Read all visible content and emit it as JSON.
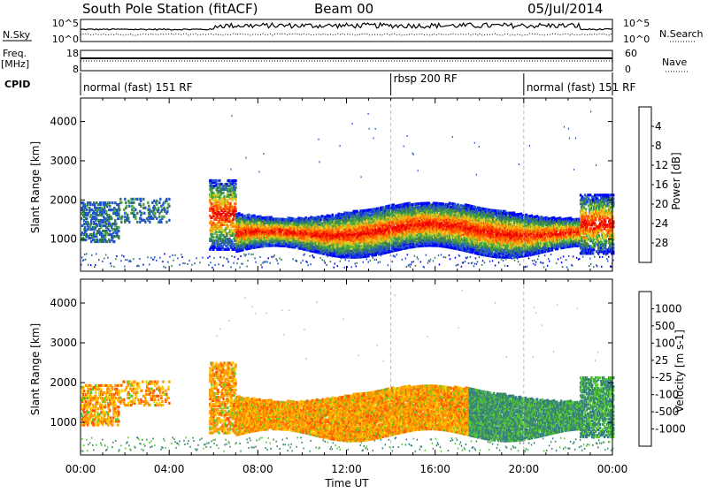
{
  "header": {
    "station": "South Pole Station (fitACF)",
    "beam": "Beam 00",
    "date": "05/Jul/2014"
  },
  "mini_panels": {
    "nsky": {
      "left_label": "N.Sky",
      "right_label": "N.Search",
      "left_ticks": [
        "10^5",
        "10^0"
      ],
      "right_ticks": [
        "10^5",
        "10^0"
      ]
    },
    "freq": {
      "left_label_line1": "Freq.",
      "left_label_line2": "[MHz]",
      "left_ticks": [
        "18",
        "8"
      ],
      "right_label": "Nave",
      "right_ticks": [
        "60",
        "0"
      ]
    },
    "cpid": {
      "label": "CPID",
      "segments": [
        {
          "label": "normal (fast) 151 RF",
          "start_hour": 0
        },
        {
          "label": "rbsp 200 RF",
          "start_hour": 14.0
        },
        {
          "label": "normal (fast) 151 RF",
          "start_hour": 20.0
        }
      ]
    }
  },
  "chart_data": [
    {
      "type": "heatmap",
      "name": "power",
      "ylabel": "Slant Range [km]",
      "ylim": [
        180,
        4600
      ],
      "yticks": [
        1000,
        2000,
        3000,
        4000
      ],
      "xlim": [
        0,
        24
      ],
      "colorbar": {
        "label": "Power [dB]",
        "ticks": [
          "4",
          "8",
          "12",
          "16",
          "20",
          "24",
          "28"
        ],
        "colors": [
          "#0000ff",
          "#2255cc",
          "#3a7a5a",
          "#44a844",
          "#ddcc22",
          "#ff8800",
          "#ff4400",
          "#ee0000"
        ]
      }
    },
    {
      "type": "heatmap",
      "name": "velocity",
      "ylabel": "Slant Range [km]",
      "ylim": [
        180,
        4600
      ],
      "yticks": [
        1000,
        2000,
        3000,
        4000
      ],
      "xlim": [
        0,
        24
      ],
      "xticks": [
        "00:00",
        "04:00",
        "08:00",
        "12:00",
        "16:00",
        "20:00",
        "00:00"
      ],
      "xlabel": "Time UT",
      "colorbar": {
        "label": "Velocity [m s-1]",
        "ticks": [
          "1000",
          "500",
          "100",
          "25",
          "-25",
          "-100",
          "-500",
          "-1000"
        ],
        "colors": [
          "#2244aa",
          "#337a88",
          "#3f8f66",
          "#55cc33",
          "#bbbbbb",
          "#ffcc00",
          "#ff9900",
          "#ff5500",
          "#ee0000"
        ]
      }
    }
  ]
}
